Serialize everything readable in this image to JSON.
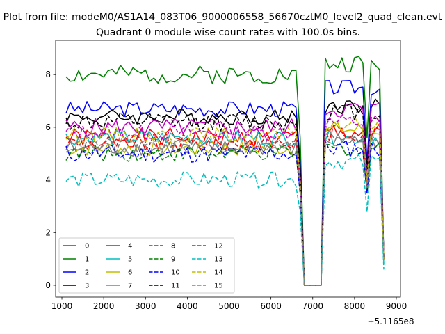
{
  "chart_data": {
    "type": "line",
    "suptitle": "Plot from file: modeM0/AS1A14_083T06_9000006558_56670cztM0_level2_quad_clean.evt",
    "title": "Quadrant 0 module wise count rates with 100.0s bins.",
    "xlabel": "",
    "ylabel": "",
    "x_offset_label": "+5.1165e8",
    "xlim": [
      850,
      9100
    ],
    "ylim": [
      -0.45,
      9.3
    ],
    "xticks": [
      1000,
      2000,
      3000,
      4000,
      5000,
      6000,
      7000,
      8000,
      9000
    ],
    "xtick_labels": [
      "1000",
      "2000",
      "3000",
      "4000",
      "5000",
      "6000",
      "7000",
      "8000",
      "9000"
    ],
    "yticks": [
      0,
      2,
      4,
      6,
      8
    ],
    "ytick_labels": [
      "0",
      "2",
      "4",
      "6",
      "8"
    ],
    "x": {
      "start": 1100,
      "step": 100,
      "count": 77
    },
    "legend_position": "lower-left",
    "legend_columns": 4,
    "gaps": [
      [
        6800,
        7200
      ]
    ],
    "dips": [
      8300
    ],
    "series": [
      {
        "name": "0",
        "color": "#ff0000",
        "dash": "solid",
        "level": 5.6,
        "end": 5.8,
        "low": 1.0,
        "noise": 0.35,
        "seed": 1
      },
      {
        "name": "1",
        "color": "#008000",
        "dash": "solid",
        "level": 8.0,
        "end": 8.4,
        "low": 1.0,
        "noise": 0.35,
        "seed": 2
      },
      {
        "name": "2",
        "color": "#0000ff",
        "dash": "solid",
        "level": 6.7,
        "end": 7.5,
        "low": 1.0,
        "noise": 0.3,
        "seed": 3
      },
      {
        "name": "3",
        "color": "#000000",
        "dash": "solid",
        "level": 6.4,
        "end": 6.8,
        "low": 1.0,
        "noise": 0.3,
        "seed": 4
      },
      {
        "name": "4",
        "color": "#bf00bf",
        "dash": "solid",
        "level": 6.0,
        "end": 6.7,
        "low": 1.0,
        "noise": 0.35,
        "seed": 5
      },
      {
        "name": "5",
        "color": "#00bfbf",
        "dash": "solid",
        "level": 5.6,
        "end": 5.6,
        "low": 0.8,
        "noise": 0.3,
        "seed": 6
      },
      {
        "name": "6",
        "color": "#bfbf00",
        "dash": "solid",
        "level": 5.2,
        "end": 5.9,
        "low": 1.0,
        "noise": 0.3,
        "seed": 7
      },
      {
        "name": "7",
        "color": "#808080",
        "dash": "solid",
        "level": 5.2,
        "end": 5.5,
        "low": 1.0,
        "noise": 0.3,
        "seed": 8
      },
      {
        "name": "8",
        "color": "#ff0000",
        "dash": "dashed",
        "level": 5.4,
        "end": 5.8,
        "low": 1.0,
        "noise": 0.35,
        "seed": 9
      },
      {
        "name": "9",
        "color": "#008000",
        "dash": "dashed",
        "level": 5.0,
        "end": 5.2,
        "low": 1.0,
        "noise": 0.3,
        "seed": 10
      },
      {
        "name": "10",
        "color": "#0000ff",
        "dash": "dashed",
        "level": 5.0,
        "end": 5.2,
        "low": 1.0,
        "noise": 0.35,
        "seed": 11
      },
      {
        "name": "11",
        "color": "#000000",
        "dash": "dashed",
        "level": 6.2,
        "end": 6.6,
        "low": 1.0,
        "noise": 0.35,
        "seed": 12
      },
      {
        "name": "12",
        "color": "#bf00bf",
        "dash": "dashed",
        "level": 5.8,
        "end": 6.2,
        "low": 1.0,
        "noise": 0.3,
        "seed": 13
      },
      {
        "name": "13",
        "color": "#00bfbf",
        "dash": "dashed",
        "level": 4.0,
        "end": 4.7,
        "low": 0.6,
        "noise": 0.3,
        "seed": 14
      },
      {
        "name": "14",
        "color": "#bfbf00",
        "dash": "dashed",
        "level": 5.7,
        "end": 6.1,
        "low": 1.0,
        "noise": 0.3,
        "seed": 15
      },
      {
        "name": "15",
        "color": "#808080",
        "dash": "dashed",
        "level": 5.3,
        "end": 5.7,
        "low": 1.0,
        "noise": 0.3,
        "seed": 16
      }
    ]
  }
}
